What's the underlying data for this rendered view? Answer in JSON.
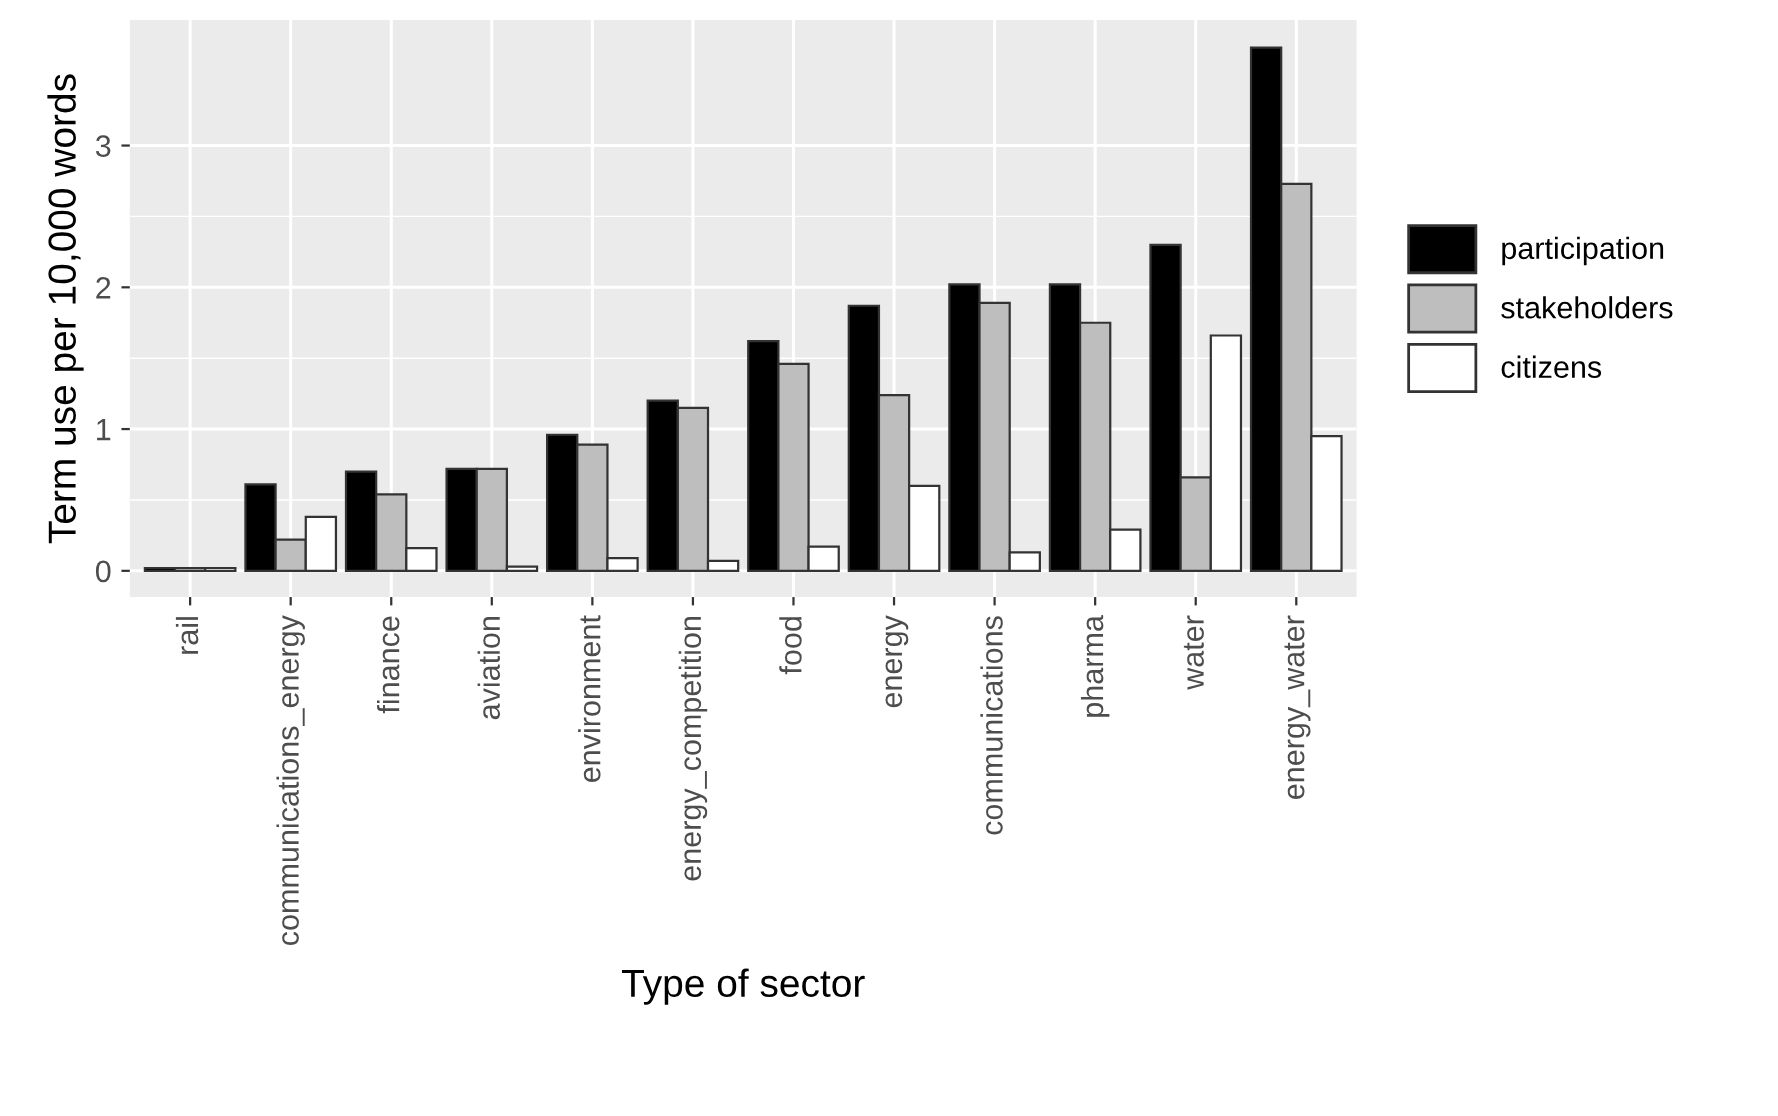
{
  "chart_data": {
    "type": "bar",
    "xlabel": "Type of sector",
    "ylabel": "Term use per 10,000 words",
    "categories": [
      "rail",
      "communications_energy",
      "finance",
      "aviation",
      "environment",
      "energy_competition",
      "food",
      "energy",
      "communications",
      "pharma",
      "water",
      "energy_water"
    ],
    "series": [
      {
        "name": "participation",
        "color": "#000000",
        "values": [
          0.02,
          0.61,
          0.7,
          0.72,
          0.96,
          1.2,
          1.62,
          1.87,
          2.02,
          2.02,
          2.3,
          3.69
        ]
      },
      {
        "name": "stakeholders",
        "color": "#bebebe",
        "values": [
          0.02,
          0.22,
          0.54,
          0.72,
          0.89,
          1.15,
          1.46,
          1.24,
          1.89,
          1.75,
          0.66,
          2.73
        ]
      },
      {
        "name": "citizens",
        "color": "#ffffff",
        "values": [
          0.02,
          0.38,
          0.16,
          0.03,
          0.09,
          0.07,
          0.17,
          0.6,
          0.13,
          0.29,
          1.66,
          0.95
        ]
      }
    ],
    "ylim": [
      -0.185,
      3.885
    ],
    "yticks": [
      0,
      1,
      2,
      3
    ],
    "grid": true,
    "legend": "right"
  }
}
